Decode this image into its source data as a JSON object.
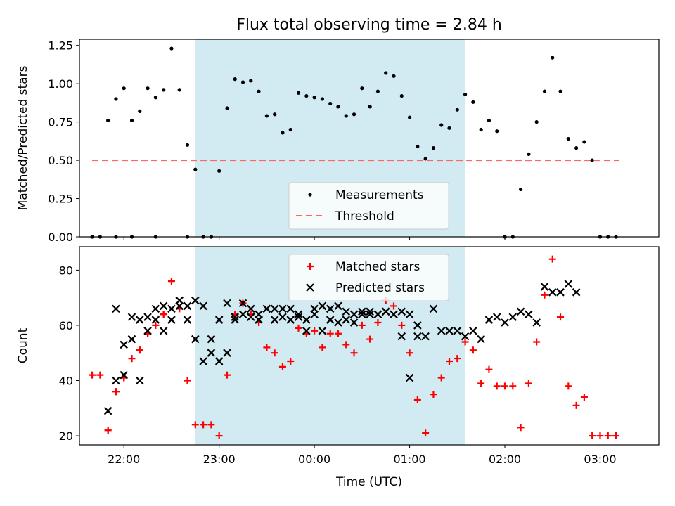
{
  "title": "Flux total observing time = 2.84 h",
  "xlabel": "Time (UTC)",
  "colors": {
    "shade": "#add8e6",
    "measurement": "#000000",
    "threshold": "#ff6666",
    "matched": "#ff0000",
    "predicted": "#000000"
  },
  "chart_data": [
    {
      "type": "scatter",
      "panel": "top",
      "ylabel": "Matched/Predicted stars",
      "xlim": [
        "21:32",
        "03:37"
      ],
      "ylim": [
        0,
        1.29
      ],
      "yticks": [
        0.0,
        0.25,
        0.5,
        0.75,
        1.0,
        1.25
      ],
      "ytick_labels": [
        "0.00",
        "0.25",
        "0.50",
        "0.75",
        "1.00",
        "1.25"
      ],
      "xticks": [
        "22:00",
        "23:00",
        "00:00",
        "01:00",
        "02:00",
        "03:00"
      ],
      "shaded_span": [
        "22:45",
        "01:35"
      ],
      "legend": {
        "position": "lower center",
        "entries": [
          "Measurements",
          "Threshold"
        ]
      },
      "threshold": {
        "name": "Threshold",
        "x": [
          "21:40",
          "03:12"
        ],
        "y": 0.5,
        "style": "dashed"
      },
      "series": [
        {
          "name": "Measurements",
          "marker": "dot",
          "x": [
            "21:40",
            "21:45",
            "21:50",
            "21:55",
            "22:00",
            "22:05",
            "22:10",
            "22:15",
            "22:20",
            "22:25",
            "22:30",
            "22:35",
            "22:40",
            "22:45",
            "22:50",
            "22:55",
            "23:00",
            "23:05",
            "23:10",
            "23:15",
            "23:20",
            "23:25",
            "23:30",
            "23:35",
            "23:40",
            "23:45",
            "23:50",
            "23:55",
            "00:00",
            "00:05",
            "00:10",
            "00:15",
            "00:20",
            "00:25",
            "00:30",
            "00:35",
            "00:40",
            "00:45",
            "00:50",
            "00:55",
            "01:00",
            "01:05",
            "01:10",
            "01:15",
            "01:20",
            "01:25",
            "01:30",
            "01:35",
            "01:40",
            "01:45",
            "01:50",
            "01:55",
            "02:00",
            "02:05",
            "02:10",
            "02:15",
            "02:20",
            "02:25",
            "02:30",
            "02:35",
            "02:40",
            "02:45",
            "02:50",
            "02:55",
            "03:00",
            "03:05",
            "03:10",
            "21:55",
            "22:05",
            "22:20",
            "22:40",
            "22:55"
          ],
          "y": [
            0,
            0,
            0.76,
            0.9,
            0.97,
            0.76,
            0.82,
            0.97,
            0.91,
            0.96,
            1.23,
            0.96,
            0.6,
            0.44,
            0,
            0,
            0.43,
            0.84,
            1.03,
            1.01,
            1.02,
            0.95,
            0.79,
            0.8,
            0.68,
            0.7,
            0.94,
            0.92,
            0.91,
            0.9,
            0.87,
            0.85,
            0.79,
            0.8,
            0.97,
            0.85,
            0.95,
            1.07,
            1.05,
            0.92,
            0.78,
            0.59,
            0.51,
            0.58,
            0.73,
            0.71,
            0.83,
            0.93,
            0.88,
            0.7,
            0.76,
            0.69,
            0,
            0,
            0.31,
            0.54,
            0.75,
            0.95,
            1.17,
            0.95,
            0.64,
            0.58,
            0.62,
            0.5,
            0,
            0,
            0,
            0,
            0,
            0,
            0,
            0
          ]
        }
      ]
    },
    {
      "type": "scatter",
      "panel": "bottom",
      "ylabel": "Count",
      "xlim": [
        "21:32",
        "03:37"
      ],
      "ylim": [
        16.7,
        88.5
      ],
      "yticks": [
        20,
        40,
        60,
        80
      ],
      "ytick_labels": [
        "20",
        "40",
        "60",
        "80"
      ],
      "xticks": [
        "22:00",
        "23:00",
        "00:00",
        "01:00",
        "02:00",
        "03:00"
      ],
      "xtick_labels": [
        "22:00",
        "23:00",
        "00:00",
        "01:00",
        "02:00",
        "03:00"
      ],
      "shaded_span": [
        "22:45",
        "01:35"
      ],
      "legend": {
        "position": "upper center",
        "entries": [
          "Matched stars",
          "Predicted stars"
        ]
      },
      "series": [
        {
          "name": "Matched stars",
          "marker": "plus",
          "x": [
            "21:40",
            "21:45",
            "21:50",
            "21:55",
            "22:00",
            "22:05",
            "22:10",
            "22:15",
            "22:20",
            "22:25",
            "22:30",
            "22:35",
            "22:40",
            "22:45",
            "22:50",
            "22:55",
            "23:00",
            "23:05",
            "23:10",
            "23:15",
            "23:20",
            "23:25",
            "23:30",
            "23:35",
            "23:40",
            "23:45",
            "23:50",
            "23:55",
            "00:00",
            "00:05",
            "00:10",
            "00:15",
            "00:20",
            "00:25",
            "00:30",
            "00:35",
            "00:40",
            "00:45",
            "00:50",
            "00:55",
            "01:00",
            "01:05",
            "01:10",
            "01:15",
            "01:20",
            "01:25",
            "01:30",
            "01:35",
            "01:40",
            "01:45",
            "01:50",
            "01:55",
            "02:00",
            "02:05",
            "02:10",
            "02:15",
            "02:20",
            "02:25",
            "02:30",
            "02:35",
            "02:40",
            "02:45",
            "02:50",
            "02:55",
            "03:00",
            "03:05",
            "03:10",
            "21:50",
            "21:55",
            "22:00",
            "22:05",
            "22:10",
            "22:15",
            "22:20",
            "22:25"
          ],
          "y": [
            42,
            42,
            22,
            36,
            41,
            48,
            51,
            57,
            60,
            64,
            76,
            66,
            40,
            24,
            24,
            24,
            20,
            42,
            64,
            68,
            64,
            61,
            52,
            50,
            45,
            47,
            59,
            57,
            58,
            52,
            57,
            57,
            53,
            50,
            60,
            55,
            61,
            69,
            67,
            60,
            50,
            33,
            21,
            35,
            41,
            47,
            48,
            54,
            51,
            39,
            44,
            38,
            38,
            38,
            23,
            39,
            54,
            71,
            84,
            63,
            38,
            31,
            34,
            20,
            20,
            20,
            20,
            22,
            36,
            41,
            48,
            51,
            57,
            60,
            64
          ]
        },
        {
          "name": "Predicted stars",
          "marker": "x",
          "x": [
            "21:50",
            "21:55",
            "22:00",
            "22:05",
            "22:10",
            "22:15",
            "22:20",
            "22:25",
            "22:30",
            "22:35",
            "22:40",
            "22:45",
            "22:50",
            "22:55",
            "23:00",
            "23:05",
            "23:10",
            "23:15",
            "23:20",
            "23:25",
            "23:30",
            "23:35",
            "23:40",
            "23:45",
            "23:50",
            "23:55",
            "00:00",
            "00:05",
            "00:10",
            "00:15",
            "00:20",
            "00:25",
            "00:30",
            "00:35",
            "00:40",
            "00:45",
            "00:50",
            "00:55",
            "01:00",
            "01:05",
            "01:10",
            "01:15",
            "01:20",
            "01:25",
            "01:30",
            "01:35",
            "01:40",
            "01:45",
            "01:50",
            "01:55",
            "02:00",
            "02:05",
            "02:10",
            "02:15",
            "02:20",
            "02:25",
            "02:30",
            "02:35",
            "02:40",
            "02:45",
            "21:55",
            "22:00",
            "22:05",
            "22:10",
            "22:15",
            "22:20",
            "22:25",
            "22:30",
            "22:35",
            "22:40",
            "22:45",
            "22:50",
            "22:55",
            "23:00",
            "23:05",
            "23:10",
            "23:15",
            "23:20",
            "23:25",
            "23:30",
            "23:35",
            "23:40",
            "23:45",
            "23:50",
            "23:55",
            "00:00",
            "00:05",
            "00:10",
            "00:15",
            "00:20",
            "00:25",
            "00:30",
            "00:35",
            "00:40",
            "00:45",
            "00:50",
            "00:55",
            "01:00",
            "01:05"
          ],
          "y": [
            29,
            40,
            42,
            63,
            62,
            58,
            66,
            67,
            62,
            69,
            67,
            55,
            47,
            50,
            62,
            68,
            63,
            64,
            66,
            62,
            66,
            66,
            63,
            62,
            64,
            58,
            66,
            67,
            62,
            61,
            65,
            64,
            64,
            65,
            64,
            65,
            64,
            56,
            41,
            60,
            56,
            66,
            58,
            58,
            58,
            56,
            58,
            55,
            62,
            63,
            61,
            63,
            65,
            64,
            61,
            74,
            72,
            72,
            75,
            72,
            66,
            53,
            55,
            40,
            63,
            62,
            58,
            66,
            67,
            62,
            69,
            67,
            55,
            47,
            50,
            62,
            68,
            63,
            64,
            66,
            62,
            66,
            66,
            63,
            62,
            64,
            58,
            66,
            67,
            62,
            61,
            65,
            64,
            64,
            65,
            64,
            65,
            64,
            56
          ]
        }
      ]
    }
  ]
}
